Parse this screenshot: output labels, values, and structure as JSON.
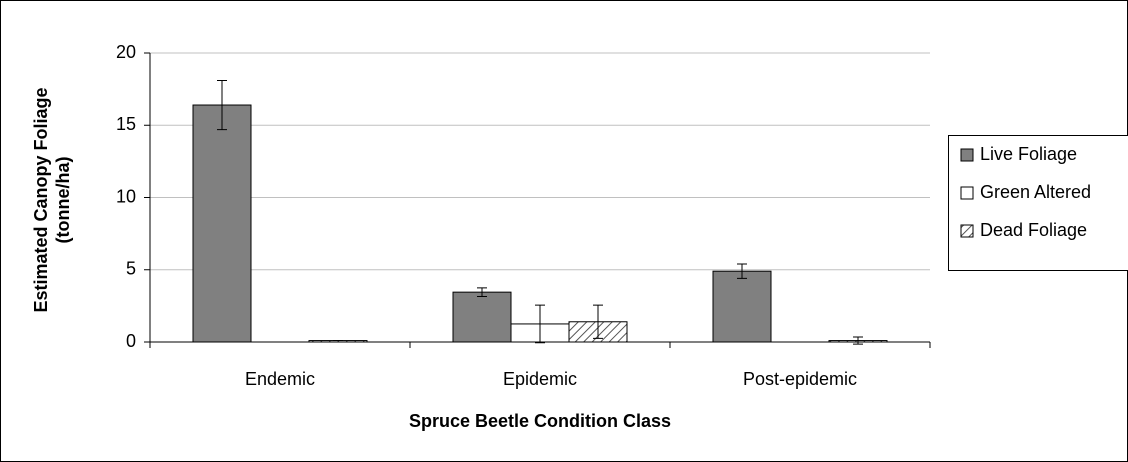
{
  "chart_data": {
    "type": "bar",
    "xlabel": "Spruce Beetle Condition Class",
    "ylabel": [
      "Estimated Canopy Foliage",
      "(tonne/ha)"
    ],
    "categories": [
      "Endemic",
      "Epidemic",
      "Post-epidemic"
    ],
    "series": [
      {
        "name": "Live Foliage",
        "color": "#808080",
        "values": [
          16.4,
          3.45,
          4.9
        ],
        "errors": [
          1.7,
          0.3,
          0.5
        ]
      },
      {
        "name": "Green Altered",
        "color": "#ffffff",
        "values": [
          0,
          1.25,
          0
        ],
        "errors": [
          0,
          1.3,
          0
        ]
      },
      {
        "name": "Dead Foliage",
        "color": "#ffffff",
        "hatch": true,
        "values": [
          0.1,
          1.4,
          0.1
        ],
        "errors": [
          0,
          1.15,
          0.25
        ]
      }
    ],
    "ylim": [
      0,
      20
    ],
    "yticks": [
      0,
      5,
      10,
      15,
      20
    ],
    "grid": true,
    "legend": "right"
  }
}
